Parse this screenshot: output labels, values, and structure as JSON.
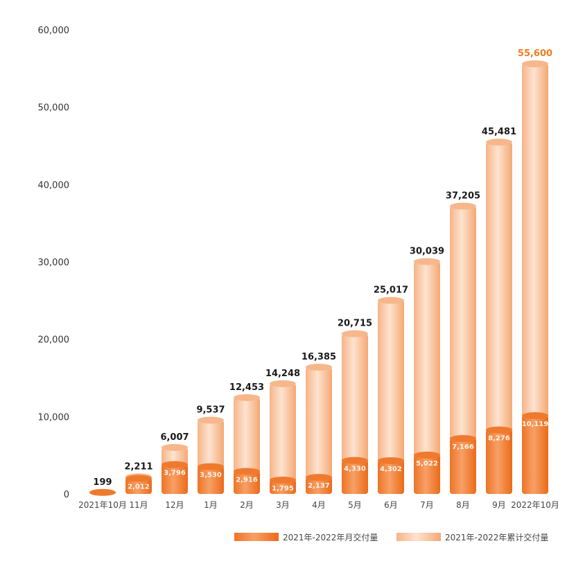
{
  "chart_data": {
    "type": "bar",
    "title": "",
    "xlabel": "",
    "ylabel": "",
    "ylim": [
      0,
      60000
    ],
    "yticks": [
      0,
      10000,
      20000,
      30000,
      40000,
      50000,
      60000
    ],
    "ytick_labels": [
      "0",
      "10,000",
      "20,000",
      "30,000",
      "40,000",
      "50,000",
      "60,000"
    ],
    "grid": false,
    "legend_placement": "bottom-right",
    "categories": [
      "2021年10月",
      "11月",
      "12月",
      "1月",
      "2月",
      "3月",
      "4月",
      "5月",
      "6月",
      "7月",
      "8月",
      "9月",
      "2022年10月"
    ],
    "series": [
      {
        "name": "2021年-2022年月交付量",
        "values": [
          199,
          2012,
          3796,
          3530,
          2916,
          1795,
          2137,
          4330,
          4302,
          5022,
          7166,
          8276,
          10119
        ],
        "labels": [
          "",
          "2,012",
          "3,796",
          "3,530",
          "2,916",
          "1,795",
          "2,137",
          "4,330",
          "4,302",
          "5,022",
          "7,166",
          "8,276",
          "10,119"
        ],
        "color": "#f07a2a"
      },
      {
        "name": "2021年-2022年累计交付量",
        "values": [
          199,
          2211,
          6007,
          9537,
          12453,
          14248,
          16385,
          20715,
          25017,
          30039,
          37205,
          45481,
          55600
        ],
        "labels": [
          "199",
          "2,211",
          "6,007",
          "9,537",
          "12,453",
          "14,248",
          "16,385",
          "20,715",
          "25,017",
          "30,039",
          "37,205",
          "45,481",
          "55,600"
        ],
        "color": "#f9c8a4"
      }
    ],
    "highlight_color": "#f07a20"
  }
}
